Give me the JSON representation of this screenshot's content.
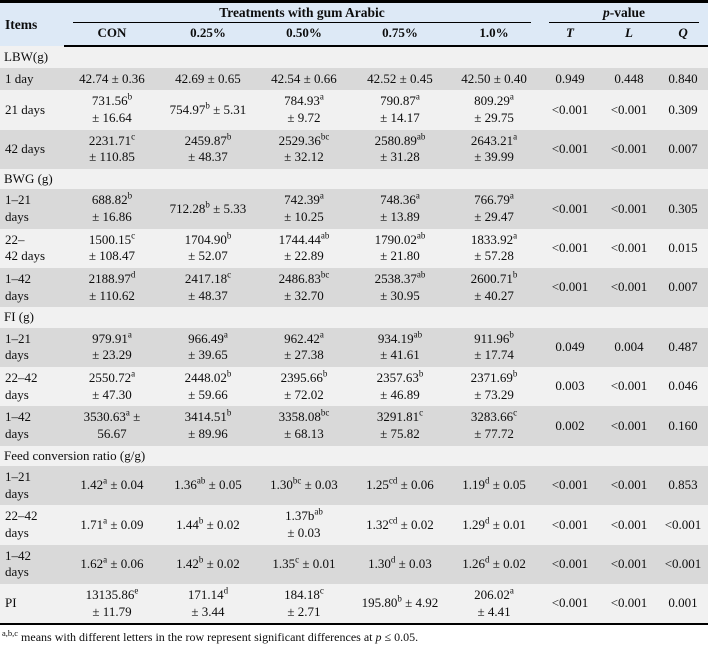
{
  "table": {
    "header": {
      "items_label": "Items",
      "treatments_label": "Treatments with gum Arabic",
      "pvalue_label": "*p*-value",
      "treatment_cols": [
        "CON",
        "0.25%",
        "0.50%",
        "0.75%",
        "1.0%"
      ],
      "pvalue_cols": [
        "T",
        "L",
        "Q"
      ]
    },
    "sections": [
      {
        "title": "LBW(g)",
        "rows": [
          {
            "label": "1 day",
            "cells": [
              "42.74 ± 0.36",
              "42.69 ± 0.65",
              "42.54 ± 0.66",
              "42.52 ± 0.45",
              "42.50 ± 0.40"
            ],
            "p": [
              "0.949",
              "0.448",
              "0.840"
            ]
          },
          {
            "label": "21 days",
            "cells": [
              "731.56^{b}\n± 16.64",
              "754.97^{b} ± 5.31",
              "784.93^{a}\n± 9.72",
              "790.87^{a}\n± 14.17",
              "809.29^{a}\n± 29.75"
            ],
            "p": [
              "<0.001",
              "<0.001",
              "0.309"
            ]
          },
          {
            "label": "42 days",
            "cells": [
              "2231.71^{c}\n± 110.85",
              "2459.87^{b}\n± 48.37",
              "2529.36^{bc}\n± 32.12",
              "2580.89^{ab}\n± 31.28",
              "2643.21^{a}\n± 39.99"
            ],
            "p": [
              "<0.001",
              "<0.001",
              "0.007"
            ]
          }
        ]
      },
      {
        "title": "BWG (g)",
        "rows": [
          {
            "label": "1–21\ndays",
            "cells": [
              "688.82^{b}\n± 16.86",
              "712.28^{b} ± 5.33",
              "742.39^{a}\n± 10.25",
              "748.36^{a}\n± 13.89",
              "766.79^{a}\n± 29.47"
            ],
            "p": [
              "<0.001",
              "<0.001",
              "0.305"
            ]
          },
          {
            "label": "22–\n42 days",
            "cells": [
              "1500.15^{c}\n± 108.47",
              "1704.90^{b}\n± 52.07",
              "1744.44^{ab}\n± 22.89",
              "1790.02^{ab}\n± 21.80",
              "1833.92^{a}\n± 57.28"
            ],
            "p": [
              "<0.001",
              "<0.001",
              "0.015"
            ]
          },
          {
            "label": "1–42\ndays",
            "cells": [
              "2188.97^{d}\n± 110.62",
              "2417.18^{c}\n± 48.37",
              "2486.83^{bc}\n± 32.70",
              "2538.37^{ab}\n± 30.95",
              "2600.71^{b}\n± 40.27"
            ],
            "p": [
              "<0.001",
              "<0.001",
              "0.007"
            ]
          }
        ]
      },
      {
        "title": "FI (g)",
        "rows": [
          {
            "label": "1–21\ndays",
            "cells": [
              "979.91^{a}\n± 23.29",
              "966.49^{a}\n± 39.65",
              "962.42^{a}\n± 27.38",
              "934.19^{ab}\n± 41.61",
              "911.96^{b}\n± 17.74"
            ],
            "p": [
              "0.049",
              "0.004",
              "0.487"
            ]
          },
          {
            "label": "22–42\ndays",
            "cells": [
              "2550.72^{a}\n± 47.30",
              "2448.02^{b}\n± 59.66",
              "2395.66^{b}\n± 72.02",
              "2357.63^{b}\n± 46.89",
              "2371.69^{b}\n± 73.29"
            ],
            "p": [
              "0.003",
              "<0.001",
              "0.046"
            ]
          },
          {
            "label": "1–42\ndays",
            "cells": [
              "3530.63^{a} ±\n56.67",
              "3414.51^{b}\n± 89.96",
              "3358.08^{bc}\n± 68.13",
              "3291.81^{c}\n± 75.82",
              "3283.66^{c}\n± 77.72"
            ],
            "p": [
              "0.002",
              "<0.001",
              "0.160"
            ]
          }
        ]
      },
      {
        "title": "Feed conversion ratio (g/g)",
        "rows": [
          {
            "label": "1–21\ndays",
            "cells": [
              "1.42^{a} ± 0.04",
              "1.36^{ab} ± 0.05",
              "1.30^{bc} ± 0.03",
              "1.25^{cd} ± 0.06",
              "1.19^{d} ± 0.05"
            ],
            "p": [
              "<0.001",
              "<0.001",
              "0.853"
            ]
          },
          {
            "label": "22–42\ndays",
            "cells": [
              "1.71^{a} ± 0.09",
              "1.44^{b} ± 0.02",
              "1.37b^{ab}\n± 0.03",
              "1.32^{cd} ± 0.02",
              "1.29^{d} ± 0.01"
            ],
            "p": [
              "<0.001",
              "<0.001",
              "<0.001"
            ]
          },
          {
            "label": "1–42\ndays",
            "cells": [
              "1.62^{a} ± 0.06",
              "1.42^{b} ± 0.02",
              "1.35^{c} ± 0.01",
              "1.30^{d} ± 0.03",
              "1.26^{d} ± 0.02"
            ],
            "p": [
              "<0.001",
              "<0.001",
              "<0.001"
            ]
          }
        ]
      },
      {
        "title": "",
        "rows": [
          {
            "label": "PI",
            "cells": [
              "13135.86^{e}\n± 11.79",
              "171.14^{d}\n± 3.44",
              "184.18^{c}\n± 2.71",
              "195.80^{b} ± 4.92",
              "206.02^{a}\n± 4.41"
            ],
            "p": [
              "<0.001",
              "<0.001",
              "0.001"
            ]
          }
        ]
      }
    ],
    "footnote": "^{a,b,c} means with different letters in the row represent significant differences at *p* ≤ 0.05."
  }
}
